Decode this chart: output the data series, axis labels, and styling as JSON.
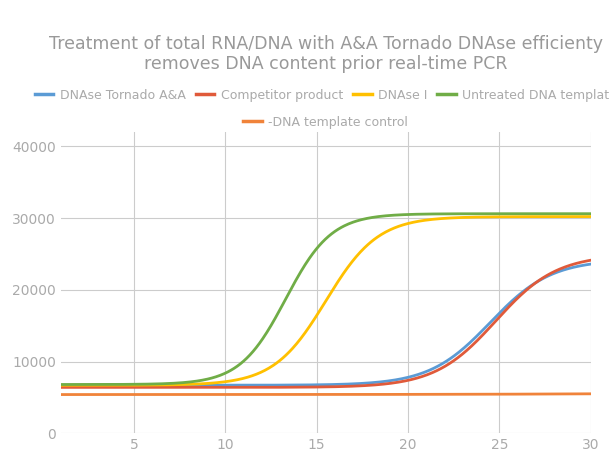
{
  "title": "Treatment of total RNA/DNA with A&A Tornado DNAse efficienty\nremoves DNA content prior real-time PCR",
  "title_color": "#999999",
  "title_fontsize": 12.5,
  "background_color": "#ffffff",
  "grid_color": "#cccccc",
  "xlim": [
    1,
    30
  ],
  "ylim": [
    0,
    42000
  ],
  "xticks": [
    5,
    10,
    15,
    20,
    25,
    30
  ],
  "yticks": [
    0,
    10000,
    20000,
    30000,
    40000
  ],
  "tick_color": "#aaaaaa",
  "series": [
    {
      "label": "DNAse Tornado A&A",
      "color": "#5b9bd5",
      "plateau": 17500,
      "midpoint": 24.5,
      "steepness": 0.6,
      "baseline": 6700,
      "linestyle": "-"
    },
    {
      "label": "Competitor product",
      "color": "#e05a3a",
      "plateau": 18500,
      "midpoint": 24.8,
      "steepness": 0.6,
      "baseline": 6400,
      "linestyle": "-"
    },
    {
      "label": "DNAse I",
      "color": "#ffc000",
      "plateau": 23500,
      "midpoint": 15.5,
      "steepness": 0.7,
      "baseline": 6700,
      "linestyle": "-"
    },
    {
      "label": "Untreated DNA template",
      "color": "#70ad47",
      "plateau": 23800,
      "midpoint": 13.3,
      "steepness": 0.8,
      "baseline": 6800,
      "linestyle": "-"
    },
    {
      "label": "-DNA template control",
      "color": "#f0833a",
      "plateau": 2200,
      "midpoint": 50.0,
      "steepness": 0.15,
      "baseline": 5400,
      "linestyle": "-"
    }
  ],
  "legend_fontsize": 9,
  "axis_tick_fontsize": 10
}
